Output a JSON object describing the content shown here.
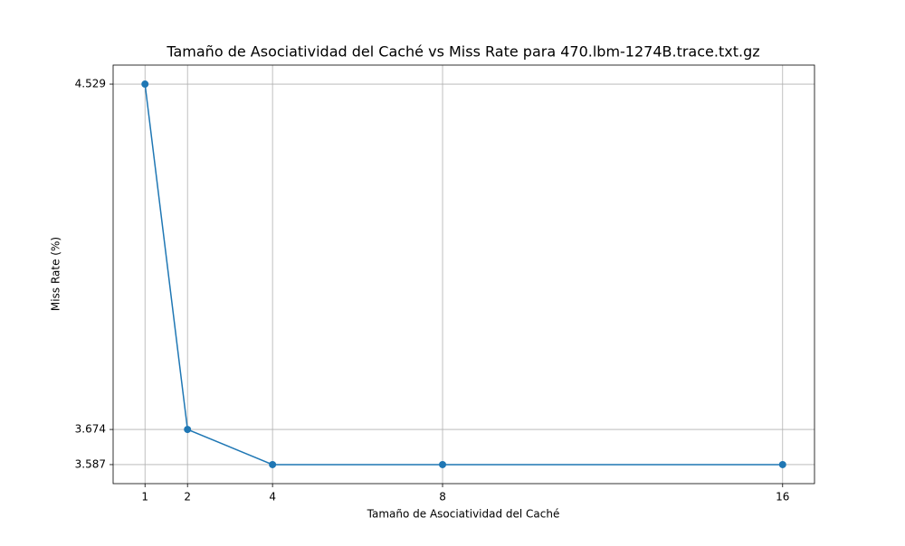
{
  "chart_data": {
    "type": "line",
    "title": "Tamaño de Asociatividad del Caché vs Miss Rate para 470.lbm-1274B.trace.txt.gz",
    "x_label": "Tamaño de Asociatividad del Caché",
    "y_label": "Miss Rate (%)",
    "x": [
      1,
      2,
      4,
      8,
      16
    ],
    "series": [
      {
        "color": "#1f77b4",
        "values": [
          4.529,
          3.674,
          3.587,
          3.587,
          3.587
        ]
      }
    ],
    "xlim": [
      0.25,
      16.75
    ],
    "xticks": [
      1,
      2,
      4,
      8,
      16
    ],
    "ylim": [
      3.5399,
      4.5761
    ],
    "yticks": [
      3.587,
      3.674,
      4.529
    ],
    "grid": true
  }
}
